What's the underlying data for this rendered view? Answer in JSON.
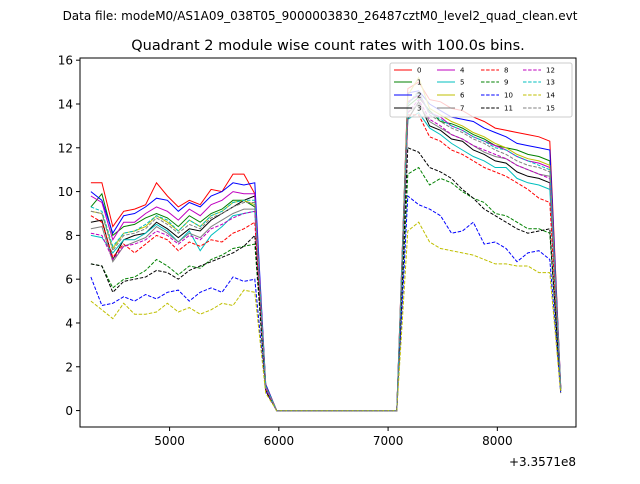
{
  "header_text": "Data file: modeM0/AS1A09_038T05_9000003830_26487cztM0_level2_quad_clean.evt",
  "chart_data": {
    "type": "line",
    "title": "Quadrant 2 module wise count rates with 100.0s bins.",
    "xlabel": "",
    "ylabel": "",
    "x_offset_label": "+3.3571e8",
    "xlim": [
      4180,
      8720
    ],
    "ylim": [
      -0.75,
      16.1
    ],
    "x_ticks": [
      5000,
      6000,
      7000,
      8000
    ],
    "x_tick_labels": [
      "5000",
      "6000",
      "7000",
      "8000"
    ],
    "y_ticks": [
      0,
      2,
      4,
      6,
      8,
      10,
      12,
      14,
      16
    ],
    "y_tick_labels": [
      "0",
      "2",
      "4",
      "6",
      "8",
      "10",
      "12",
      "14",
      "16"
    ],
    "grid": false,
    "legend_position": "top-right",
    "legend_columns": 4,
    "x": [
      4280,
      4380,
      4480,
      4580,
      4680,
      4780,
      4880,
      4980,
      5080,
      5180,
      5280,
      5380,
      5480,
      5580,
      5680,
      5780,
      5880,
      5980,
      6080,
      6180,
      6280,
      6380,
      6480,
      6580,
      6680,
      6780,
      6880,
      6980,
      7080,
      7180,
      7280,
      7380,
      7480,
      7580,
      7680,
      7780,
      7880,
      7980,
      8080,
      8180,
      8280,
      8380,
      8480,
      8580
    ],
    "series": [
      {
        "name": "0",
        "color": "#ff0000",
        "dash": "solid",
        "values": [
          10.4,
          10.4,
          8.4,
          9.1,
          9.2,
          9.4,
          10.4,
          9.8,
          9.3,
          9.6,
          9.4,
          10.1,
          10.0,
          10.8,
          10.8,
          9.9,
          1.2,
          0,
          0,
          0,
          0,
          0,
          0,
          0,
          0,
          0,
          0,
          0,
          0,
          14.7,
          15.0,
          14.2,
          14.1,
          13.8,
          13.7,
          13.4,
          13.2,
          12.9,
          12.8,
          12.7,
          12.6,
          12.5,
          12.3,
          1.1
        ]
      },
      {
        "name": "1",
        "color": "#008000",
        "dash": "solid",
        "values": [
          9.3,
          9.9,
          8.0,
          8.4,
          8.5,
          8.8,
          9.0,
          8.8,
          8.4,
          8.9,
          8.6,
          9.0,
          9.2,
          9.6,
          9.6,
          9.3,
          1.1,
          0,
          0,
          0,
          0,
          0,
          0,
          0,
          0,
          0,
          0,
          0,
          0,
          13.9,
          14.3,
          13.7,
          13.2,
          13.1,
          12.9,
          12.6,
          12.4,
          12.1,
          12.0,
          11.9,
          11.7,
          11.6,
          11.4,
          1.0
        ]
      },
      {
        "name": "2",
        "color": "#0000ff",
        "dash": "solid",
        "values": [
          10.0,
          9.6,
          8.1,
          8.9,
          9.0,
          9.3,
          9.7,
          9.6,
          9.1,
          9.5,
          9.3,
          9.8,
          10.0,
          10.4,
          10.3,
          10.4,
          1.2,
          0,
          0,
          0,
          0,
          0,
          0,
          0,
          0,
          0,
          0,
          0,
          0,
          14.5,
          14.6,
          14.0,
          13.7,
          13.4,
          13.3,
          13.2,
          12.9,
          12.7,
          12.5,
          12.2,
          12.1,
          12.0,
          11.9,
          1.1
        ]
      },
      {
        "name": "3",
        "color": "#000000",
        "dash": "solid",
        "values": [
          8.6,
          8.7,
          6.9,
          7.8,
          8.0,
          8.1,
          8.6,
          8.3,
          7.9,
          8.3,
          8.2,
          8.7,
          9.0,
          9.3,
          9.6,
          9.8,
          1.1,
          0,
          0,
          0,
          0,
          0,
          0,
          0,
          0,
          0,
          0,
          0,
          0,
          13.3,
          14.1,
          13.0,
          12.8,
          12.4,
          12.3,
          11.9,
          11.7,
          11.4,
          11.3,
          10.9,
          10.7,
          10.6,
          10.4,
          1.0
        ]
      },
      {
        "name": "4",
        "color": "#bf00bf",
        "dash": "solid",
        "values": [
          9.8,
          9.5,
          7.8,
          8.6,
          8.6,
          9.0,
          9.3,
          9.1,
          8.7,
          9.2,
          8.9,
          9.4,
          9.6,
          10.0,
          9.9,
          9.9,
          1.1,
          0,
          0,
          0,
          0,
          0,
          0,
          0,
          0,
          0,
          0,
          0,
          0,
          14.1,
          14.4,
          13.6,
          13.4,
          13.0,
          12.8,
          12.5,
          12.3,
          12.1,
          11.9,
          11.6,
          11.4,
          11.3,
          11.1,
          1.0
        ]
      },
      {
        "name": "5",
        "color": "#00bfbf",
        "dash": "solid",
        "values": [
          8.0,
          7.9,
          7.2,
          7.8,
          7.8,
          8.1,
          8.5,
          8.2,
          7.7,
          8.2,
          7.3,
          8.0,
          8.4,
          8.9,
          9.0,
          9.1,
          1.0,
          0,
          0,
          0,
          0,
          0,
          0,
          0,
          0,
          0,
          0,
          0,
          0,
          13.3,
          13.6,
          12.9,
          12.6,
          12.2,
          11.9,
          11.6,
          11.4,
          11.1,
          11.1,
          10.6,
          10.4,
          10.3,
          10.1,
          1.0
        ]
      },
      {
        "name": "6",
        "color": "#bfbf00",
        "dash": "solid",
        "values": [
          9.1,
          9.0,
          7.4,
          8.1,
          8.2,
          8.4,
          8.9,
          8.6,
          8.2,
          8.7,
          8.4,
          8.9,
          9.1,
          9.5,
          9.6,
          9.4,
          1.1,
          0,
          0,
          0,
          0,
          0,
          0,
          0,
          0,
          0,
          0,
          0,
          0,
          14.4,
          15.2,
          13.8,
          13.5,
          13.2,
          13.0,
          12.7,
          12.5,
          12.2,
          12.0,
          11.7,
          11.5,
          11.4,
          11.2,
          1.0
        ]
      },
      {
        "name": "7",
        "color": "#808080",
        "dash": "solid",
        "values": [
          8.3,
          8.4,
          6.8,
          7.5,
          7.7,
          7.9,
          8.4,
          8.1,
          7.7,
          8.1,
          7.9,
          8.4,
          8.7,
          9.0,
          9.2,
          9.2,
          1.0,
          0,
          0,
          0,
          0,
          0,
          0,
          0,
          0,
          0,
          0,
          0,
          0,
          13.6,
          14.0,
          13.2,
          12.9,
          12.6,
          12.4,
          12.1,
          11.8,
          11.6,
          11.5,
          11.2,
          11.0,
          10.8,
          10.7,
          1.0
        ]
      },
      {
        "name": "8",
        "color": "#ff0000",
        "dash": "dashed",
        "values": [
          8.9,
          8.6,
          7.0,
          7.6,
          7.2,
          7.6,
          8.0,
          7.8,
          7.3,
          7.7,
          7.5,
          7.8,
          7.7,
          8.1,
          8.3,
          8.6,
          1.0,
          0,
          0,
          0,
          0,
          0,
          0,
          0,
          0,
          0,
          0,
          0,
          0,
          13.5,
          13.5,
          12.5,
          12.3,
          11.9,
          11.7,
          11.4,
          11.1,
          10.9,
          10.7,
          10.4,
          10.1,
          9.7,
          9.5,
          1.0
        ]
      },
      {
        "name": "9",
        "color": "#008000",
        "dash": "dashed",
        "values": [
          6.7,
          6.6,
          5.6,
          6.0,
          6.1,
          6.4,
          6.9,
          6.6,
          6.2,
          6.6,
          6.5,
          6.9,
          7.1,
          7.4,
          7.5,
          7.6,
          0.9,
          0,
          0,
          0,
          0,
          0,
          0,
          0,
          0,
          0,
          0,
          0,
          0,
          10.8,
          11.1,
          10.3,
          10.6,
          10.4,
          10.0,
          9.7,
          9.5,
          9.0,
          8.9,
          8.6,
          8.3,
          8.3,
          8.1,
          0.9
        ]
      },
      {
        "name": "10",
        "color": "#0000ff",
        "dash": "dashed",
        "values": [
          6.1,
          4.8,
          4.9,
          5.2,
          5.0,
          5.3,
          5.1,
          5.4,
          5.5,
          5.0,
          5.4,
          5.6,
          5.4,
          6.1,
          5.9,
          6.0,
          0.9,
          0,
          0,
          0,
          0,
          0,
          0,
          0,
          0,
          0,
          0,
          0,
          0,
          9.8,
          9.4,
          9.2,
          8.9,
          8.1,
          8.2,
          8.6,
          7.6,
          7.7,
          7.4,
          6.8,
          7.2,
          7.3,
          6.9,
          0.8
        ]
      },
      {
        "name": "11",
        "color": "#000000",
        "dash": "dashed",
        "values": [
          6.7,
          6.6,
          5.4,
          5.9,
          6.0,
          6.1,
          6.4,
          6.3,
          6.0,
          6.4,
          6.6,
          6.8,
          7.0,
          7.2,
          7.5,
          8.0,
          0.9,
          0,
          0,
          0,
          0,
          0,
          0,
          0,
          0,
          0,
          0,
          0,
          0,
          12.0,
          11.8,
          11.1,
          10.9,
          10.6,
          10.1,
          9.7,
          9.2,
          8.9,
          8.6,
          8.3,
          8.1,
          8.2,
          8.3,
          0.9
        ]
      },
      {
        "name": "12",
        "color": "#bf00bf",
        "dash": "dashed",
        "values": [
          8.1,
          8.0,
          6.9,
          7.5,
          7.6,
          7.8,
          8.2,
          8.0,
          7.6,
          8.0,
          7.8,
          8.3,
          8.5,
          8.8,
          9.0,
          9.1,
          1.0,
          0,
          0,
          0,
          0,
          0,
          0,
          0,
          0,
          0,
          0,
          0,
          0,
          13.6,
          14.2,
          13.3,
          13.0,
          12.6,
          12.4,
          12.1,
          11.9,
          11.7,
          11.5,
          11.2,
          11.0,
          10.8,
          10.6,
          1.0
        ]
      },
      {
        "name": "13",
        "color": "#00bfbf",
        "dash": "dashed",
        "values": [
          9.3,
          9.1,
          7.5,
          8.1,
          8.2,
          8.5,
          8.9,
          8.7,
          8.2,
          8.7,
          8.4,
          8.9,
          9.1,
          9.5,
          9.6,
          9.6,
          1.1,
          0,
          0,
          0,
          0,
          0,
          0,
          0,
          0,
          0,
          0,
          0,
          0,
          14.0,
          14.5,
          13.6,
          13.3,
          13.0,
          12.8,
          12.5,
          12.3,
          12.0,
          11.9,
          11.6,
          11.4,
          11.2,
          11.0,
          1.0
        ]
      },
      {
        "name": "14",
        "color": "#bfbf00",
        "dash": "dashed",
        "values": [
          5.0,
          4.6,
          4.2,
          4.9,
          4.4,
          4.4,
          4.5,
          4.9,
          4.5,
          4.7,
          4.4,
          4.6,
          4.9,
          4.8,
          5.5,
          5.4,
          0.8,
          0,
          0,
          0,
          0,
          0,
          0,
          0,
          0,
          0,
          0,
          0,
          0,
          8.2,
          8.6,
          7.7,
          7.4,
          7.3,
          7.2,
          7.1,
          6.9,
          6.7,
          6.7,
          6.6,
          6.6,
          6.3,
          6.3,
          0.8
        ]
      },
      {
        "name": "15",
        "color": "#808080",
        "dash": "dashed",
        "values": [
          9.1,
          9.0,
          7.3,
          8.0,
          8.1,
          8.3,
          8.8,
          8.5,
          8.1,
          8.5,
          8.3,
          8.8,
          9.0,
          9.3,
          9.5,
          9.5,
          1.1,
          0,
          0,
          0,
          0,
          0,
          0,
          0,
          0,
          0,
          0,
          0,
          0,
          14.0,
          14.6,
          13.5,
          13.2,
          12.9,
          12.7,
          12.4,
          12.2,
          11.9,
          11.7,
          11.4,
          11.2,
          11.1,
          10.9,
          1.0
        ]
      }
    ]
  }
}
